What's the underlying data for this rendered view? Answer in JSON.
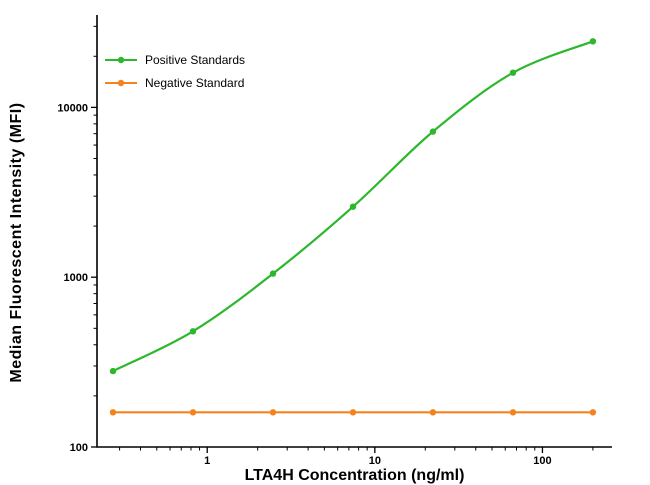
{
  "figure": {
    "background": "#ffffff"
  },
  "chart_data": {
    "type": "line",
    "title": "",
    "xlabel": "LTA4H Concentration (ng/ml)",
    "ylabel": "Median  Fluorescent Intensity (MFI)",
    "x_scale": "log",
    "y_scale": "log",
    "xlim": [
      0.22,
      260
    ],
    "ylim": [
      100,
      35000
    ],
    "x_ticks": [
      1,
      10,
      100
    ],
    "y_ticks": [
      100,
      1000,
      10000
    ],
    "grid": false,
    "legend_position": "top-left",
    "axis_color": "#000000",
    "series": [
      {
        "name": "Positive Standards",
        "color": "#2cb72c",
        "marker": "circle",
        "x": [
          0.274,
          0.823,
          2.47,
          7.41,
          22.2,
          66.7,
          200
        ],
        "y": [
          280,
          480,
          1050,
          2600,
          7200,
          16000,
          24500
        ]
      },
      {
        "name": "Negative Standard",
        "color": "#f58220",
        "marker": "circle",
        "x": [
          0.274,
          0.823,
          2.47,
          7.41,
          22.2,
          66.7,
          200
        ],
        "y": [
          160,
          160,
          160,
          160,
          160,
          160,
          160
        ]
      }
    ]
  }
}
